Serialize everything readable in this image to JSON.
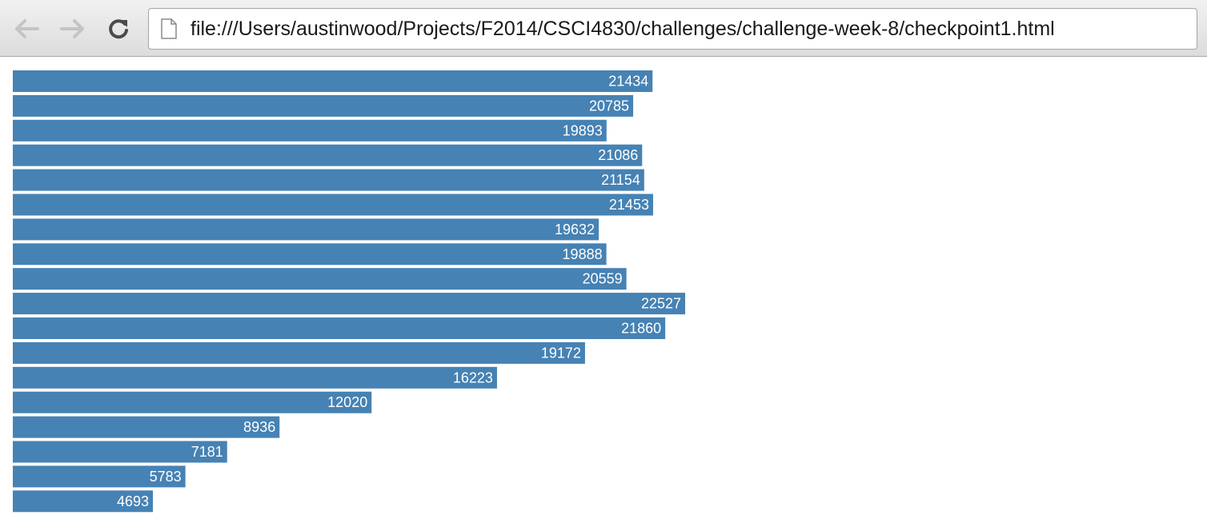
{
  "browser": {
    "url": "file:///Users/austinwood/Projects/F2014/CSCI4830/challenges/challenge-week-8/checkpoint1.html",
    "back_icon": "back-arrow-icon",
    "forward_icon": "forward-arrow-icon",
    "reload_icon": "reload-icon",
    "page_icon": "document-icon"
  },
  "chart_data": {
    "type": "bar",
    "orientation": "horizontal",
    "values": [
      21434,
      20785,
      19893,
      21086,
      21154,
      21453,
      19632,
      19888,
      20559,
      22527,
      21860,
      19172,
      16223,
      12020,
      8936,
      7181,
      5783,
      4693
    ],
    "bar_color": "#4682b4",
    "label_color": "#ffffff",
    "title": "",
    "xlabel": "",
    "ylabel": ""
  }
}
